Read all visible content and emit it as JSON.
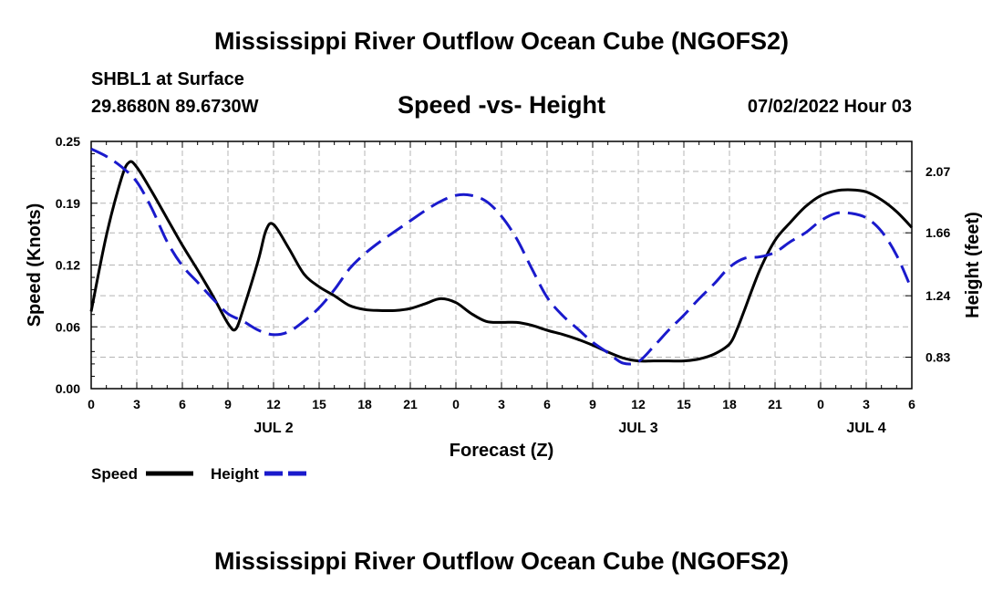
{
  "header": {
    "title_top": "Mississippi River Outflow Ocean Cube (NGOFS2)",
    "station": "SHBL1 at Surface",
    "coords": "29.8680N  89.6730W",
    "chart_title": "Speed -vs- Height",
    "datetime": "07/02/2022 Hour 03",
    "title_bottom": "Mississippi River Outflow Ocean Cube (NGOFS2)"
  },
  "colors": {
    "speed": "#000000",
    "height": "#1a1acc",
    "grid": "#b4b4b4"
  },
  "chart_data": {
    "type": "line",
    "title": "Speed -vs- Height",
    "xlabel": "Forecast (Z)",
    "ylabel": "Speed (Knots)",
    "y2label": "Height (feet)",
    "xlim": [
      0,
      54
    ],
    "ylim": [
      0,
      0.25
    ],
    "y2lim": [
      0.62,
      2.27
    ],
    "x_ticks": [
      0,
      3,
      6,
      9,
      12,
      15,
      18,
      21,
      24,
      27,
      30,
      33,
      36,
      39,
      42,
      45,
      48,
      51,
      54
    ],
    "x_tick_labels": [
      "0",
      "3",
      "6",
      "9",
      "12",
      "15",
      "18",
      "21",
      "0",
      "3",
      "6",
      "9",
      "12",
      "15",
      "18",
      "21",
      "0",
      "3",
      "6"
    ],
    "day_labels": [
      {
        "x": 12,
        "label": "JUL 2"
      },
      {
        "x": 36,
        "label": "JUL 3"
      },
      {
        "x": 51,
        "label": "JUL 4"
      }
    ],
    "y_ticks": [
      0,
      0.0625,
      0.125,
      0.1875,
      0.25
    ],
    "y_tick_labels": [
      "0.00",
      "0.06",
      "0.12",
      "0.19",
      "0.25"
    ],
    "y2_ticks": [
      0.83,
      1.24,
      1.66,
      2.07
    ],
    "y2_tick_labels": [
      "0.83",
      "1.24",
      "1.66",
      "2.07"
    ],
    "grid": true,
    "legend": {
      "position": "bottom-left",
      "entries": [
        "Speed",
        "Height"
      ]
    },
    "series": [
      {
        "name": "Speed",
        "axis": "left",
        "style": "solid",
        "x": [
          0,
          1,
          2,
          2.5,
          3,
          4,
          5,
          6,
          7,
          8,
          9,
          9.5,
          10,
          11,
          11.5,
          12,
          13,
          14,
          15,
          16,
          17,
          18,
          19,
          20,
          21,
          22,
          23,
          24,
          25,
          26,
          27,
          28,
          29,
          30,
          31,
          32,
          33,
          34,
          35,
          36,
          37,
          38,
          39,
          40,
          41,
          42,
          42.5,
          43,
          44,
          45,
          46,
          47,
          48,
          49,
          50,
          51,
          52,
          53,
          54
        ],
        "values": [
          0.078,
          0.155,
          0.213,
          0.229,
          0.224,
          0.199,
          0.172,
          0.145,
          0.12,
          0.094,
          0.066,
          0.06,
          0.08,
          0.13,
          0.16,
          0.166,
          0.142,
          0.116,
          0.103,
          0.094,
          0.084,
          0.08,
          0.079,
          0.079,
          0.081,
          0.086,
          0.091,
          0.087,
          0.076,
          0.068,
          0.067,
          0.067,
          0.064,
          0.059,
          0.055,
          0.05,
          0.044,
          0.037,
          0.031,
          0.028,
          0.028,
          0.028,
          0.028,
          0.03,
          0.035,
          0.045,
          0.06,
          0.08,
          0.12,
          0.15,
          0.168,
          0.184,
          0.195,
          0.2,
          0.201,
          0.199,
          0.191,
          0.179,
          0.163
        ]
      },
      {
        "name": "Height",
        "axis": "right",
        "style": "dashed",
        "x": [
          0,
          1,
          2,
          3,
          4,
          5,
          6,
          7,
          8,
          9,
          10,
          11,
          12,
          13,
          14,
          15,
          16,
          17,
          18,
          19,
          20,
          21,
          22,
          23,
          24,
          25,
          26,
          27,
          28,
          29,
          30,
          31,
          32,
          33,
          34,
          35,
          36,
          37,
          38,
          39,
          40,
          41,
          42,
          43,
          44,
          45,
          46,
          47,
          48,
          49,
          50,
          51,
          52,
          53,
          54
        ],
        "values": [
          2.22,
          2.17,
          2.1,
          2.0,
          1.82,
          1.6,
          1.44,
          1.33,
          1.22,
          1.12,
          1.07,
          1.01,
          0.98,
          1.0,
          1.07,
          1.16,
          1.28,
          1.42,
          1.52,
          1.6,
          1.67,
          1.74,
          1.81,
          1.87,
          1.91,
          1.91,
          1.87,
          1.77,
          1.62,
          1.42,
          1.23,
          1.11,
          1.02,
          0.93,
          0.86,
          0.79,
          0.8,
          0.9,
          1.01,
          1.11,
          1.22,
          1.32,
          1.43,
          1.49,
          1.5,
          1.53,
          1.6,
          1.66,
          1.74,
          1.79,
          1.79,
          1.76,
          1.67,
          1.51,
          1.28
        ]
      }
    ]
  }
}
